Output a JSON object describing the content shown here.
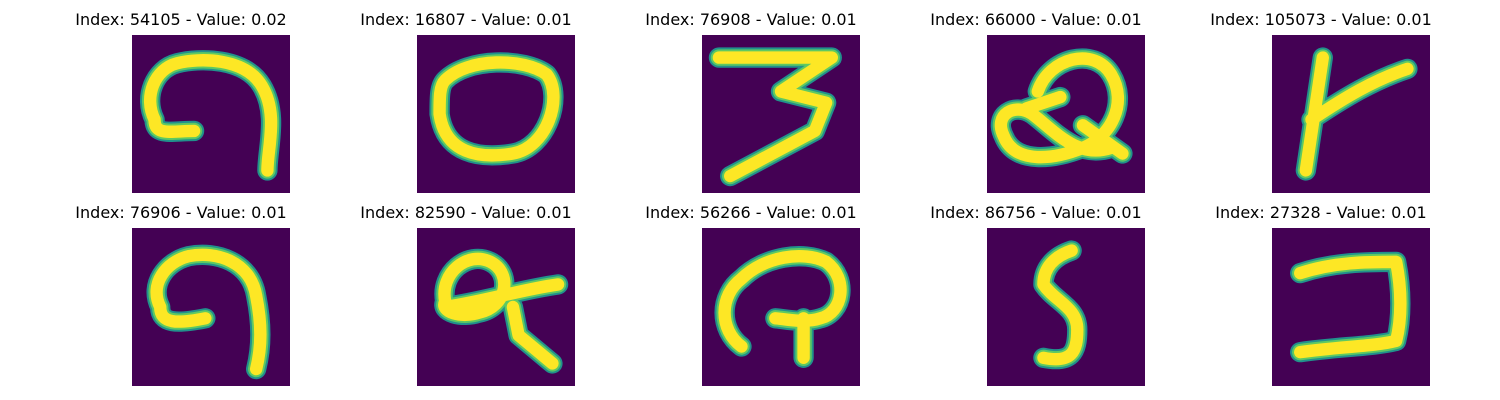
{
  "colors": {
    "background": "#440154",
    "stroke_edge": "#21918c",
    "stroke_mid": "#5ec962",
    "stroke_core": "#fde725"
  },
  "panels": [
    {
      "title": "Index: 54105 - Value: 0.02",
      "glyph": "seven-hook-icon"
    },
    {
      "title": "Index: 16807 - Value: 0.01",
      "glyph": "zero-loop-icon"
    },
    {
      "title": "Index: 76908 - Value: 0.01",
      "glyph": "zigzag-three-icon"
    },
    {
      "title": "Index: 66000 - Value: 0.01",
      "glyph": "loop-knot-icon"
    },
    {
      "title": "Index: 105073 - Value: 0.01",
      "glyph": "k-shape-icon"
    },
    {
      "title": "Index: 76906 - Value: 0.01",
      "glyph": "seven-hook-icon"
    },
    {
      "title": "Index: 82590 - Value: 0.01",
      "glyph": "loop-tail-icon"
    },
    {
      "title": "Index: 56266 - Value: 0.01",
      "glyph": "arch-stem-icon"
    },
    {
      "title": "Index: 86756 - Value: 0.01",
      "glyph": "five-shape-icon"
    },
    {
      "title": "Index: 27328 - Value: 0.01",
      "glyph": "reverse-c-icon"
    }
  ]
}
